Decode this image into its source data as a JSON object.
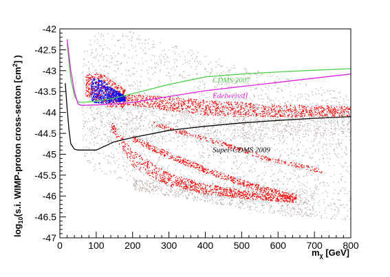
{
  "chart_data": {
    "type": "scatter",
    "x_axis": {
      "title_main": "m",
      "title_sub": "χ",
      "title_unit": " [GeV]",
      "range": [
        0,
        800
      ],
      "ticks": [
        0,
        100,
        200,
        300,
        400,
        500,
        600,
        700,
        800
      ],
      "tick_labels": [
        "0",
        "100",
        "200",
        "300",
        "400",
        "500",
        "600",
        "700",
        "800"
      ]
    },
    "y_axis": {
      "title_pre": "log",
      "title_sub": "10",
      "title_mid": "(s.i. WIMP-proton cross-secton [cm",
      "title_sup": "2",
      "title_post": "] )",
      "range": [
        -47,
        -42
      ],
      "ticks": [
        -47,
        -46.5,
        -46,
        -45.5,
        -45,
        -44.5,
        -44,
        -43.5,
        -43,
        -42.5,
        -42
      ],
      "tick_labels": [
        "-47",
        "-46.5",
        "-46",
        "-45.5",
        "-45",
        "-44.5",
        "-44",
        "-43.5",
        "-43",
        "-42.5",
        "-42"
      ]
    },
    "grid": false,
    "colors": {
      "scan_gray": "#b8aca8",
      "scan_red": "#ff0000",
      "scan_blue": "#0000ff",
      "cdms_2007": "#4ad04a",
      "edelweiss": "#e020e0",
      "super_cdms": "#000000"
    },
    "limit_curves": [
      {
        "name": "CDMS 2007",
        "color": "#4ad04a",
        "label_at": [
          420,
          -43.28
        ],
        "points": [
          [
            20,
            -42.35
          ],
          [
            30,
            -43.2
          ],
          [
            40,
            -43.6
          ],
          [
            50,
            -43.75
          ],
          [
            60,
            -43.76
          ],
          [
            100,
            -43.73
          ],
          [
            150,
            -43.66
          ],
          [
            200,
            -43.55
          ],
          [
            300,
            -43.33
          ],
          [
            400,
            -43.15
          ],
          [
            500,
            -43.08
          ],
          [
            600,
            -43.03
          ],
          [
            700,
            -42.99
          ],
          [
            800,
            -42.95
          ]
        ]
      },
      {
        "name": "EdelweissII",
        "color": "#e020e0",
        "label_at": [
          420,
          -43.65
        ],
        "points": [
          [
            20,
            -42.25
          ],
          [
            30,
            -43.0
          ],
          [
            40,
            -43.5
          ],
          [
            50,
            -43.8
          ],
          [
            60,
            -43.83
          ],
          [
            100,
            -43.82
          ],
          [
            150,
            -43.8
          ],
          [
            200,
            -43.76
          ],
          [
            300,
            -43.62
          ],
          [
            400,
            -43.48
          ],
          [
            500,
            -43.38
          ],
          [
            600,
            -43.28
          ],
          [
            700,
            -43.18
          ],
          [
            800,
            -43.08
          ]
        ]
      },
      {
        "name": "Super-CDMS 2009",
        "color": "#000000",
        "label_at": [
          420,
          -44.95
        ],
        "points": [
          [
            15,
            -43.3
          ],
          [
            20,
            -43.9
          ],
          [
            25,
            -44.4
          ],
          [
            30,
            -44.75
          ],
          [
            40,
            -44.88
          ],
          [
            50,
            -44.9
          ],
          [
            100,
            -44.9
          ],
          [
            150,
            -44.7
          ],
          [
            200,
            -44.6
          ],
          [
            300,
            -44.43
          ],
          [
            400,
            -44.33
          ],
          [
            500,
            -44.25
          ],
          [
            600,
            -44.19
          ],
          [
            700,
            -44.14
          ],
          [
            800,
            -44.1
          ]
        ]
      }
    ],
    "scan_regions": [
      {
        "color": "gray",
        "count": 2200,
        "upper": [
          [
            60,
            -42.6
          ],
          [
            80,
            -42.25
          ],
          [
            100,
            -42.05
          ],
          [
            200,
            -42.05
          ],
          [
            300,
            -42.35
          ],
          [
            400,
            -42.6
          ],
          [
            500,
            -42.9
          ],
          [
            600,
            -43.1
          ],
          [
            700,
            -43.35
          ],
          [
            800,
            -43.55
          ]
        ],
        "lower": [
          [
            60,
            -44.9
          ],
          [
            80,
            -45.3
          ],
          [
            100,
            -45.5
          ],
          [
            150,
            -45.6
          ],
          [
            200,
            -45.65
          ],
          [
            300,
            -45.8
          ],
          [
            400,
            -46.0
          ],
          [
            500,
            -46.15
          ],
          [
            600,
            -46.35
          ],
          [
            700,
            -46.5
          ],
          [
            800,
            -46.6
          ]
        ]
      },
      {
        "color": "gray",
        "count": 1100,
        "upper": [
          [
            80,
            -43.3
          ],
          [
            150,
            -43.5
          ],
          [
            300,
            -43.75
          ],
          [
            500,
            -43.85
          ],
          [
            800,
            -43.9
          ]
        ],
        "lower": [
          [
            80,
            -44.8
          ],
          [
            150,
            -44.7
          ],
          [
            300,
            -44.7
          ],
          [
            500,
            -44.7
          ],
          [
            800,
            -44.5
          ]
        ]
      },
      {
        "color": "gray",
        "count": 700,
        "upper": [
          [
            200,
            -45.6
          ],
          [
            300,
            -45.65
          ],
          [
            400,
            -45.7
          ],
          [
            500,
            -45.75
          ],
          [
            600,
            -45.8
          ],
          [
            700,
            -45.85
          ]
        ],
        "lower": [
          [
            200,
            -45.85
          ],
          [
            300,
            -46.0
          ],
          [
            400,
            -46.15
          ],
          [
            500,
            -46.3
          ],
          [
            600,
            -46.45
          ],
          [
            700,
            -46.55
          ]
        ]
      },
      {
        "color": "red",
        "count": 1100,
        "upper": [
          [
            180,
            -43.55
          ],
          [
            300,
            -43.62
          ],
          [
            400,
            -43.7
          ],
          [
            500,
            -43.75
          ],
          [
            600,
            -43.8
          ],
          [
            700,
            -43.82
          ],
          [
            800,
            -43.85
          ]
        ],
        "lower": [
          [
            180,
            -43.8
          ],
          [
            300,
            -43.95
          ],
          [
            400,
            -44.05
          ],
          [
            500,
            -44.1
          ],
          [
            600,
            -44.1
          ],
          [
            700,
            -44.1
          ],
          [
            800,
            -44.08
          ]
        ]
      },
      {
        "color": "red",
        "count": 500,
        "upper": [
          [
            70,
            -43.1
          ],
          [
            100,
            -43.0
          ],
          [
            130,
            -43.15
          ],
          [
            180,
            -43.45
          ]
        ],
        "lower": [
          [
            70,
            -43.6
          ],
          [
            100,
            -43.7
          ],
          [
            130,
            -43.85
          ],
          [
            180,
            -43.9
          ]
        ]
      },
      {
        "color": "red",
        "count": 900,
        "upper": [
          [
            140,
            -44.2
          ],
          [
            200,
            -44.9
          ],
          [
            300,
            -45.45
          ],
          [
            400,
            -45.7
          ],
          [
            500,
            -45.85
          ],
          [
            600,
            -45.95
          ],
          [
            650,
            -46.0
          ]
        ],
        "lower": [
          [
            140,
            -44.4
          ],
          [
            200,
            -45.3
          ],
          [
            300,
            -45.75
          ],
          [
            400,
            -45.95
          ],
          [
            500,
            -46.05
          ],
          [
            600,
            -46.12
          ],
          [
            650,
            -46.15
          ]
        ]
      },
      {
        "color": "red",
        "count": 550,
        "upper": [
          [
            200,
            -44.55
          ],
          [
            300,
            -44.95
          ],
          [
            400,
            -45.3
          ],
          [
            500,
            -45.6
          ],
          [
            600,
            -45.85
          ],
          [
            650,
            -45.95
          ]
        ],
        "lower": [
          [
            200,
            -44.7
          ],
          [
            300,
            -45.1
          ],
          [
            400,
            -45.45
          ],
          [
            500,
            -45.75
          ],
          [
            600,
            -46.0
          ],
          [
            650,
            -46.1
          ]
        ]
      },
      {
        "color": "red",
        "count": 300,
        "upper": [
          [
            250,
            -44.2
          ],
          [
            350,
            -44.45
          ],
          [
            450,
            -44.7
          ],
          [
            550,
            -45.0
          ],
          [
            650,
            -45.2
          ],
          [
            720,
            -45.35
          ]
        ],
        "lower": [
          [
            250,
            -44.3
          ],
          [
            350,
            -44.55
          ],
          [
            450,
            -44.8
          ],
          [
            550,
            -45.1
          ],
          [
            650,
            -45.3
          ],
          [
            720,
            -45.45
          ]
        ]
      },
      {
        "color": "blue",
        "count": 700,
        "upper": [
          [
            85,
            -43.2
          ],
          [
            100,
            -43.15
          ],
          [
            120,
            -43.25
          ],
          [
            150,
            -43.45
          ],
          [
            180,
            -43.6
          ]
        ],
        "lower": [
          [
            85,
            -43.7
          ],
          [
            100,
            -43.78
          ],
          [
            120,
            -43.78
          ],
          [
            150,
            -43.75
          ],
          [
            180,
            -43.72
          ]
        ]
      }
    ]
  }
}
